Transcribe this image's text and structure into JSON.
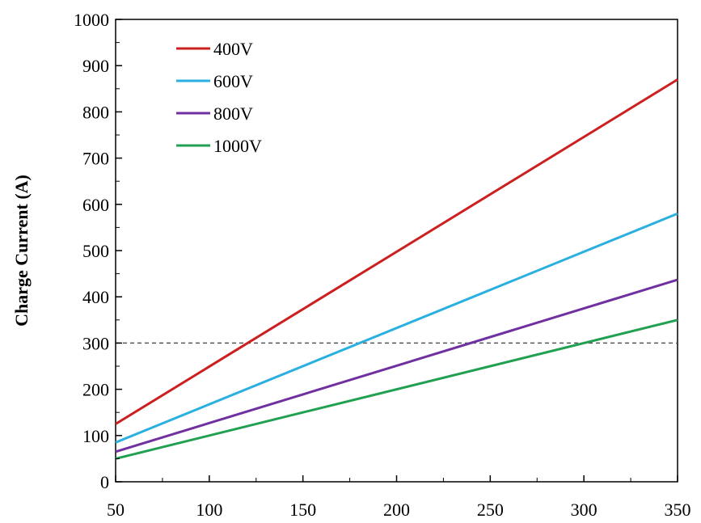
{
  "chart_data": {
    "type": "line",
    "title": "",
    "xlabel": "",
    "ylabel": "Charge Current (A)",
    "xlim": [
      50,
      350
    ],
    "ylim": [
      0,
      1000
    ],
    "x_ticks": [
      50,
      100,
      150,
      200,
      250,
      300,
      350
    ],
    "y_ticks": [
      0,
      100,
      200,
      300,
      400,
      500,
      600,
      700,
      800,
      900,
      1000
    ],
    "x_tick_labels": [
      "50",
      "100",
      "150",
      "200",
      "250",
      "300",
      "350"
    ],
    "y_tick_labels": [
      "0",
      "100",
      "200",
      "300",
      "400",
      "500",
      "600",
      "700",
      "800",
      "900",
      "1000"
    ],
    "grid": false,
    "legend": "top-left",
    "reference_line": {
      "y": 300,
      "style": "dashed",
      "color": "#555555"
    },
    "series": [
      {
        "name": "400V",
        "color": "#cc2020",
        "x": [
          50,
          350
        ],
        "y": [
          125,
          870
        ]
      },
      {
        "name": "600V",
        "color": "#2ab0e0",
        "x": [
          50,
          350
        ],
        "y": [
          85,
          580
        ]
      },
      {
        "name": "800V",
        "color": "#7030a0",
        "x": [
          50,
          350
        ],
        "y": [
          65,
          437
        ]
      },
      {
        "name": "1000V",
        "color": "#20a050",
        "x": [
          50,
          350
        ],
        "y": [
          50,
          350
        ]
      }
    ]
  }
}
